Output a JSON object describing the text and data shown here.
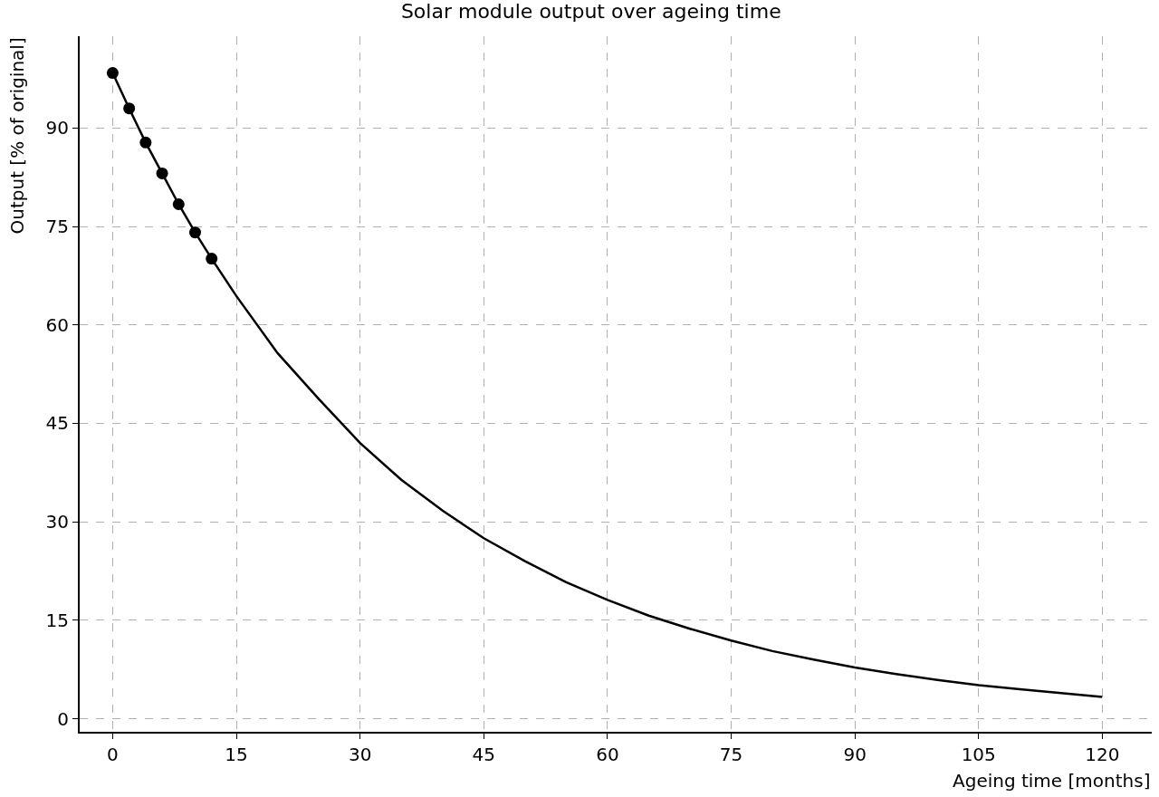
{
  "chart_data": {
    "type": "line",
    "title": "Solar module output over ageing time",
    "xlabel": "Ageing time [months]",
    "ylabel": "Output [% of original]",
    "xlim": [
      -4,
      126
    ],
    "xticks": [
      0,
      15,
      30,
      45,
      60,
      75,
      90,
      105,
      120
    ],
    "ylim": [
      -2,
      104
    ],
    "yticks": [
      0,
      15,
      30,
      45,
      60,
      75,
      90
    ],
    "grid": true,
    "series": [
      {
        "color": "#000000",
        "marker": "none",
        "line_style": "solid",
        "x": [
          0,
          2,
          4,
          6,
          8,
          10,
          12,
          15,
          20,
          25,
          30,
          35,
          40,
          45,
          50,
          55,
          60,
          65,
          70,
          75,
          80,
          85,
          90,
          95,
          100,
          105,
          110,
          115,
          120
        ],
        "values": [
          98.4,
          93.0,
          87.8,
          83.1,
          78.4,
          74.1,
          70.1,
          64.4,
          55.7,
          48.7,
          42.0,
          36.4,
          31.7,
          27.5,
          24.0,
          20.8,
          18.1,
          15.7,
          13.7,
          11.9,
          10.3,
          9.0,
          7.8,
          6.8,
          5.9,
          5.1,
          4.5,
          3.9,
          3.3
        ]
      },
      {
        "type": "scatter",
        "color": "#000000",
        "marker": "circle",
        "x": [
          0,
          2,
          4,
          6,
          8,
          10,
          12
        ],
        "values": [
          98.4,
          93.0,
          87.8,
          83.1,
          78.4,
          74.1,
          70.1
        ]
      }
    ]
  }
}
